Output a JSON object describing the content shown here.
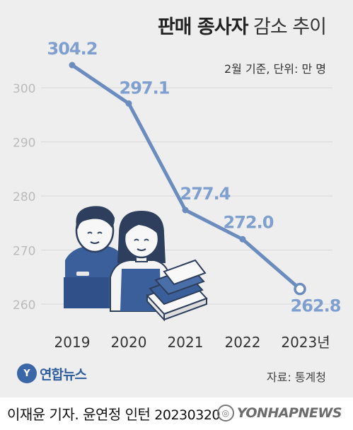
{
  "header": {
    "title_bold": "판매 종사자",
    "title_light": "감소 추이",
    "subtitle": "2월 기준, 단위: 만 명"
  },
  "footer": {
    "brand": "연합뉴스",
    "source": "자료: 통계청",
    "credit": "이재윤 기자. 윤연정 인턴",
    "date": "20230320",
    "watermark": "YONHAPNEWS"
  },
  "colors": {
    "line": "#6b8cbf",
    "label": "#7f9fcf",
    "tick": "#bbbbbb",
    "grid": "#d8d8d8",
    "axis_text": "#333333",
    "illustration": "#3a5f9a"
  },
  "chart_data": {
    "type": "line",
    "title": "판매 종사자 감소 추이",
    "subtitle": "2월 기준, 단위: 만 명",
    "categories": [
      "2019",
      "2020",
      "2021",
      "2022",
      "2023년"
    ],
    "values": [
      304.2,
      297.1,
      277.4,
      272.0,
      262.8
    ],
    "value_labels": [
      "304.2",
      "297.1",
      "277.4",
      "272.0",
      "262.8"
    ],
    "yticks": [
      260,
      270,
      280,
      290,
      300
    ],
    "ylim": [
      257,
      308
    ],
    "grid": true,
    "legend": "none"
  }
}
